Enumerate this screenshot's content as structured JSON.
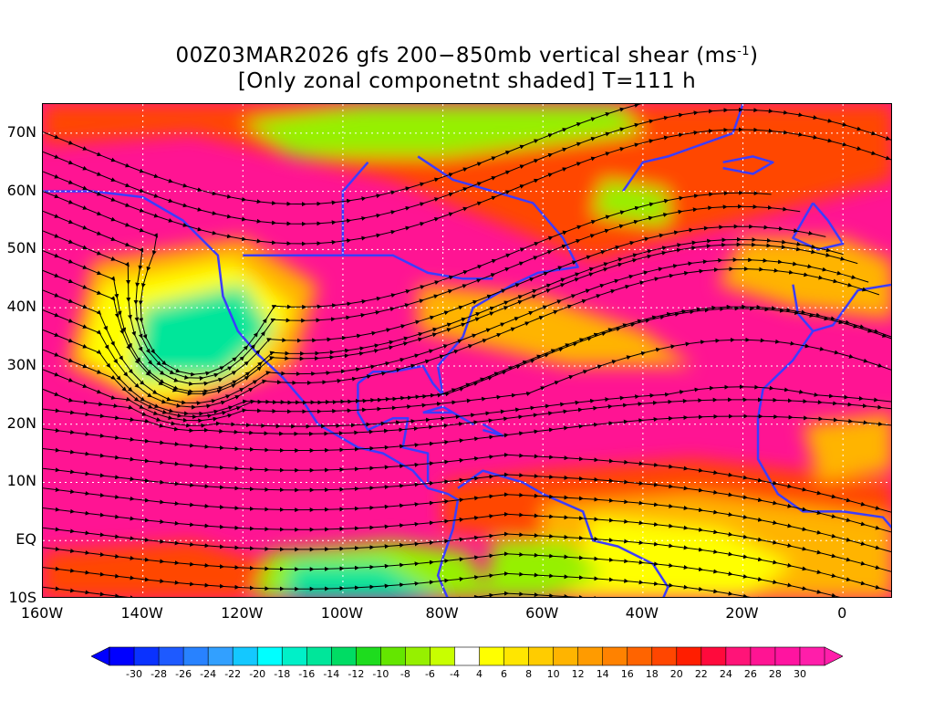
{
  "title": {
    "line1_a": "00Z03MAR2026 gfs 200−850mb vertical shear (ms",
    "line1_sup": "-1",
    "line1_b": ")",
    "line2": "[Only zonal componetnt shaded] T=111 h"
  },
  "axes": {
    "lat_labels": [
      "70N",
      "60N",
      "50N",
      "40N",
      "30N",
      "20N",
      "10N",
      "EQ",
      "10S"
    ],
    "lat_values": [
      70,
      60,
      50,
      40,
      30,
      20,
      10,
      0,
      -10
    ],
    "lon_labels": [
      "160W",
      "140W",
      "120W",
      "100W",
      "80W",
      "60W",
      "40W",
      "20W",
      "0"
    ],
    "lon_values": [
      -160,
      -140,
      -120,
      -100,
      -80,
      -60,
      -40,
      -20,
      0
    ],
    "lat_range": [
      -10,
      75
    ],
    "lon_range": [
      -160,
      10
    ]
  },
  "colorbar": {
    "labels": [
      "-30",
      "-28",
      "-26",
      "-24",
      "-22",
      "-20",
      "-18",
      "-16",
      "-14",
      "-12",
      "-10",
      "-8",
      "-6",
      "-4",
      "4",
      "6",
      "8",
      "10",
      "12",
      "14",
      "16",
      "18",
      "20",
      "22",
      "24",
      "26",
      "28",
      "30"
    ],
    "colors": [
      "#0000ff",
      "#0a32ff",
      "#1e5aff",
      "#2882ff",
      "#32a0ff",
      "#14c8ff",
      "#00ffff",
      "#00f0c8",
      "#00e69a",
      "#00dc64",
      "#1edc1e",
      "#64e600",
      "#96f000",
      "#c8ff00",
      "#ffffff",
      "#ffff00",
      "#ffe600",
      "#ffcc00",
      "#ffb400",
      "#ff9b00",
      "#ff8200",
      "#ff6400",
      "#ff4600",
      "#ff1e00",
      "#ff0a3c",
      "#ff1478",
      "#ff1493",
      "#ff14a0",
      "#ff1eaa"
    ]
  },
  "palette": {
    "strong_positive": "#ff1493",
    "moderate_positive": "#ff4600",
    "weak_positive": "#ffb400",
    "near_zero": "#ffff00",
    "weak_negative": "#96f000",
    "strong_negative": "#00e69a",
    "coastline": "#3c3cff",
    "streamline": "#000000",
    "grid": "#ffffff",
    "contour": "#9b00c8"
  }
}
